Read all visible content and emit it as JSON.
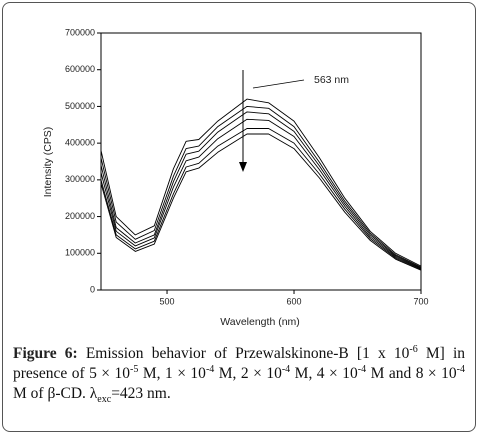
{
  "chart_data": {
    "type": "line",
    "x_label": "Wavelength (nm)",
    "y_label": "Intensity (CPS)",
    "annotation": "563 nm",
    "x": [
      448,
      460,
      475,
      490,
      505,
      515,
      525,
      540,
      563,
      580,
      600,
      620,
      640,
      660,
      680,
      700
    ],
    "series": [
      {
        "color": "#000000",
        "values": [
          380000,
          200000,
          150000,
          175000,
          330000,
          405000,
          410000,
          460000,
          520000,
          510000,
          460000,
          360000,
          250000,
          160000,
          100000,
          65000
        ]
      },
      {
        "color": "#000000",
        "values": [
          360000,
          185000,
          138000,
          162000,
          310000,
          385000,
          392000,
          445000,
          500000,
          495000,
          445000,
          348000,
          242000,
          155000,
          96000,
          62000
        ]
      },
      {
        "color": "#000000",
        "values": [
          340000,
          170000,
          128000,
          150000,
          295000,
          370000,
          378000,
          430000,
          485000,
          480000,
          432000,
          338000,
          235000,
          150000,
          93000,
          60000
        ]
      },
      {
        "color": "#000000",
        "values": [
          320000,
          160000,
          120000,
          142000,
          280000,
          352000,
          362000,
          412000,
          465000,
          462000,
          418000,
          328000,
          228000,
          145000,
          90000,
          58000
        ]
      },
      {
        "color": "#000000",
        "values": [
          300000,
          150000,
          112000,
          133000,
          262000,
          335000,
          345000,
          392000,
          440000,
          440000,
          400000,
          316000,
          220000,
          140000,
          87000,
          56000
        ]
      },
      {
        "color": "#000000",
        "values": [
          290000,
          143000,
          105000,
          125000,
          250000,
          322000,
          332000,
          375000,
          425000,
          425000,
          385000,
          305000,
          212000,
          135000,
          84000,
          54000
        ]
      }
    ],
    "xlim": [
      448,
      700
    ],
    "xticks": [
      500,
      600,
      700
    ],
    "ylim": [
      0,
      700000
    ],
    "yticks": [
      0,
      100000,
      200000,
      300000,
      400000,
      500000,
      600000,
      700000
    ]
  },
  "caption": {
    "label": "Figure 6:",
    "parts": [
      "Emission behavior of Przewalskinone-B [1 x 10",
      "-6",
      " M] in presence of 5 × 10",
      "-5",
      " M, 1 × 10",
      "-4",
      " M, 2 × 10",
      "-4",
      " M, 4 × 10",
      "-4",
      " M and 8 × 10",
      "-4",
      " M of β-CD. λ",
      "exc",
      "=423 nm."
    ]
  }
}
